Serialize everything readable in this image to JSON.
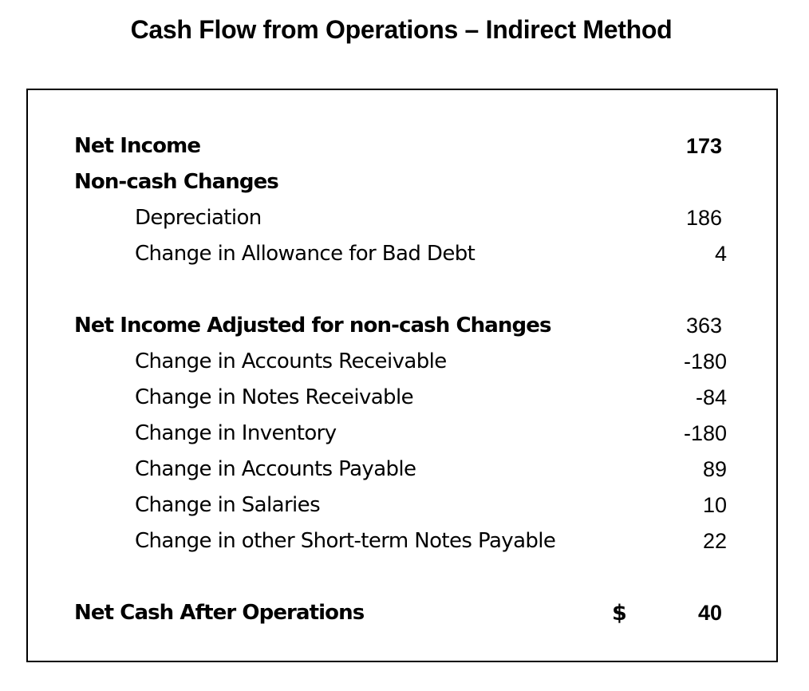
{
  "title": "Cash Flow from Operations – Indirect Method",
  "statement": {
    "net_income": {
      "label": "Net Income",
      "value": "173"
    },
    "non_cash_header": {
      "label": "Non-cash Changes"
    },
    "depreciation": {
      "label": "Depreciation",
      "value": "186"
    },
    "bad_debt": {
      "label": "Change in Allowance for Bad Debt",
      "value": "4"
    },
    "adjusted": {
      "label": "Net Income Adjusted for non-cash Changes",
      "value": "363"
    },
    "accounts_receivable": {
      "label": "Change in Accounts Receivable",
      "value": "-180"
    },
    "notes_receivable": {
      "label": "Change in Notes Receivable",
      "value": "-84"
    },
    "inventory": {
      "label": "Change in Inventory",
      "value": "-180"
    },
    "accounts_payable": {
      "label": "Change in Accounts Payable",
      "value": "89"
    },
    "salaries": {
      "label": "Change in Salaries",
      "value": "10"
    },
    "short_term_notes": {
      "label": "Change in other Short-term Notes Payable",
      "value": "22"
    },
    "net_cash": {
      "label": "Net Cash After Operations",
      "currency": "$",
      "value": "40"
    }
  }
}
